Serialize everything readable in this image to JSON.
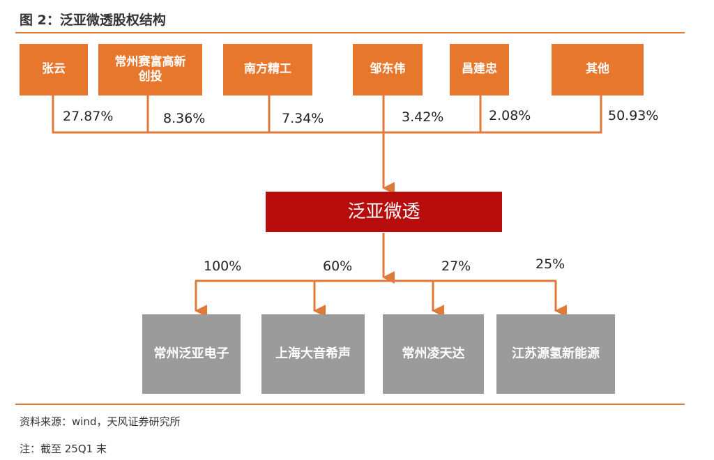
{
  "figure": {
    "title": "图 2：泛亚微透股权结构",
    "source": "资料来源：wind，天风证券研究所",
    "note": "注：截至 25Q1 末"
  },
  "shareholders": [
    {
      "name": "张云",
      "pct": "27.87%"
    },
    {
      "name": "常州赛富高新创投",
      "pct": "8.36%"
    },
    {
      "name": "南方精工",
      "pct": "7.34%"
    },
    {
      "name": "邹东伟",
      "pct": "3.42%"
    },
    {
      "name": "昌建忠",
      "pct": "2.08%"
    },
    {
      "name": "其他",
      "pct": "50.93%"
    }
  ],
  "center": {
    "name": "泛亚微透"
  },
  "subsidiaries": [
    {
      "name": "常州泛亚电子",
      "pct": "100%"
    },
    {
      "name": "上海大音希声",
      "pct": "60%"
    },
    {
      "name": "常州凌天达",
      "pct": "27%"
    },
    {
      "name": "江苏源氢新能源",
      "pct": "25%"
    }
  ],
  "colors": {
    "shareholder_box": "#e8772e",
    "connector": "#e07a3a",
    "center_box": "#b80d0d",
    "subsidiary_box": "#9b9b9b",
    "rule": "#e87a2e"
  }
}
